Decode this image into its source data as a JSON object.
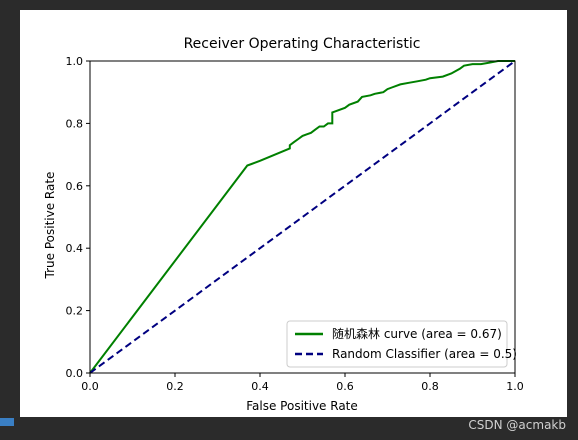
{
  "chart_data": {
    "type": "line",
    "title": "Receiver Operating Characteristic",
    "xlabel": "False Positive Rate",
    "ylabel": "True Positive Rate",
    "xlim": [
      0.0,
      1.0
    ],
    "ylim": [
      0.0,
      1.0
    ],
    "xticks": [
      "0.0",
      "0.2",
      "0.4",
      "0.6",
      "0.8",
      "1.0"
    ],
    "yticks": [
      "0.0",
      "0.2",
      "0.4",
      "0.6",
      "0.8",
      "1.0"
    ],
    "grid": false,
    "legend_position": "lower-right",
    "series": [
      {
        "name": "随机森林 curve (area = 0.67)",
        "color": "#008000",
        "style": "solid",
        "x": [
          0.0,
          0.37,
          0.38,
          0.4,
          0.47,
          0.47,
          0.48,
          0.49,
          0.5,
          0.51,
          0.52,
          0.53,
          0.54,
          0.55,
          0.56,
          0.57,
          0.57,
          0.58,
          0.6,
          0.61,
          0.63,
          0.64,
          0.66,
          0.67,
          0.69,
          0.7,
          0.71,
          0.73,
          0.75,
          0.77,
          0.79,
          0.8,
          0.83,
          0.85,
          0.87,
          0.88,
          0.9,
          0.92,
          0.94,
          0.96,
          1.0
        ],
        "y": [
          0.0,
          0.665,
          0.67,
          0.68,
          0.72,
          0.73,
          0.74,
          0.75,
          0.76,
          0.765,
          0.77,
          0.78,
          0.79,
          0.79,
          0.8,
          0.8,
          0.835,
          0.84,
          0.85,
          0.86,
          0.87,
          0.885,
          0.89,
          0.895,
          0.9,
          0.91,
          0.915,
          0.925,
          0.93,
          0.935,
          0.94,
          0.945,
          0.95,
          0.96,
          0.975,
          0.985,
          0.99,
          0.99,
          0.995,
          1.0,
          1.0
        ]
      },
      {
        "name": "Random Classifier (area = 0.5)",
        "color": "#000080",
        "style": "dashed",
        "x": [
          0.0,
          1.0
        ],
        "y": [
          0.0,
          1.0
        ]
      }
    ]
  },
  "watermark": "CSDN @acmakb"
}
